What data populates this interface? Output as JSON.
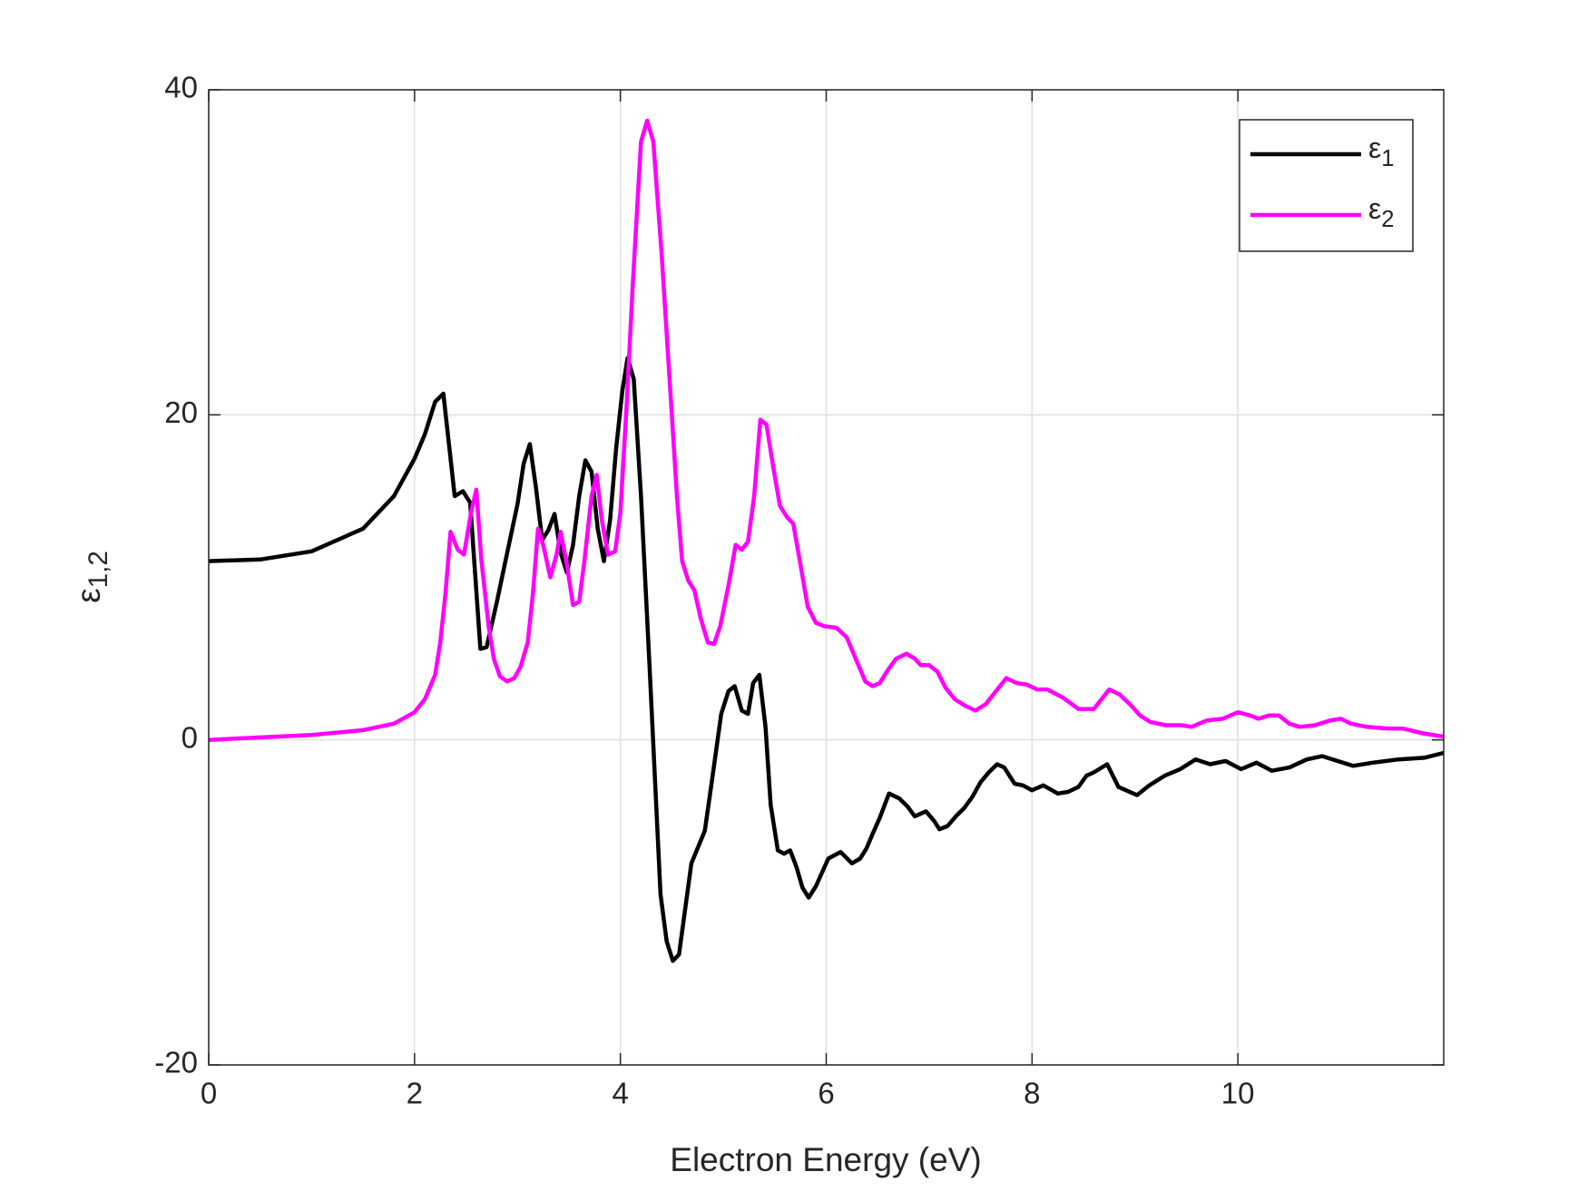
{
  "chart_data": {
    "type": "line",
    "xlabel": "Electron Energy (eV)",
    "ylabel": "ε1,2",
    "xlim": [
      0,
      12
    ],
    "ylim": [
      -20,
      40
    ],
    "xticks": [
      0,
      2,
      4,
      6,
      8,
      10
    ],
    "yticks": [
      -20,
      0,
      20,
      40
    ],
    "grid": true,
    "legend": "upper right",
    "series": [
      {
        "name": "ε1",
        "color": "#000000",
        "x": [
          0,
          0.5,
          1.0,
          1.5,
          1.8,
          2.0,
          2.1,
          2.2,
          2.28,
          2.39,
          2.47,
          2.54,
          2.64,
          2.7,
          2.8,
          2.9,
          3.0,
          3.06,
          3.12,
          3.18,
          3.24,
          3.3,
          3.36,
          3.42,
          3.48,
          3.54,
          3.6,
          3.66,
          3.72,
          3.78,
          3.84,
          3.9,
          3.96,
          4.02,
          4.07,
          4.13,
          4.2,
          4.28,
          4.39,
          4.45,
          4.51,
          4.57,
          4.69,
          4.82,
          4.89,
          4.98,
          5.05,
          5.11,
          5.18,
          5.24,
          5.29,
          5.35,
          5.41,
          5.46,
          5.53,
          5.59,
          5.65,
          5.71,
          5.77,
          5.83,
          5.9,
          6.02,
          6.14,
          6.25,
          6.33,
          6.39,
          6.45,
          6.52,
          6.61,
          6.71,
          6.79,
          6.86,
          6.97,
          7.05,
          7.1,
          7.18,
          7.26,
          7.34,
          7.42,
          7.5,
          7.58,
          7.66,
          7.73,
          7.83,
          7.91,
          8.0,
          8.11,
          8.25,
          8.35,
          8.45,
          8.53,
          8.6,
          8.73,
          8.84,
          9.02,
          9.14,
          9.29,
          9.44,
          9.59,
          9.73,
          9.88,
          10.03,
          10.18,
          10.33,
          10.5,
          10.67,
          10.82,
          10.97,
          11.12,
          11.31,
          11.56,
          11.81,
          12.0
        ],
        "values": [
          11.0,
          11.1,
          11.6,
          13.0,
          15.0,
          17.3,
          18.8,
          20.8,
          21.3,
          15.0,
          15.3,
          14.6,
          5.6,
          5.7,
          8.5,
          11.5,
          14.5,
          17.0,
          18.2,
          15.5,
          12.3,
          12.9,
          13.9,
          11.5,
          10.3,
          12.0,
          15.0,
          17.2,
          16.5,
          13.0,
          11.0,
          13.5,
          18.0,
          21.5,
          23.5,
          22.2,
          15.0,
          5.0,
          -9.5,
          -12.4,
          -13.6,
          -13.2,
          -7.6,
          -5.6,
          -2.5,
          1.6,
          3.0,
          3.3,
          1.8,
          1.6,
          3.5,
          4.0,
          0.8,
          -4.0,
          -6.8,
          -7.0,
          -6.8,
          -7.8,
          -9.1,
          -9.7,
          -9.0,
          -7.3,
          -6.9,
          -7.6,
          -7.3,
          -6.7,
          -5.8,
          -4.8,
          -3.3,
          -3.6,
          -4.1,
          -4.7,
          -4.4,
          -5.0,
          -5.5,
          -5.3,
          -4.7,
          -4.2,
          -3.5,
          -2.6,
          -2.0,
          -1.5,
          -1.7,
          -2.7,
          -2.8,
          -3.1,
          -2.8,
          -3.3,
          -3.2,
          -2.9,
          -2.2,
          -2.0,
          -1.5,
          -2.9,
          -3.4,
          -2.8,
          -2.2,
          -1.8,
          -1.2,
          -1.5,
          -1.3,
          -1.8,
          -1.4,
          -1.9,
          -1.7,
          -1.2,
          -1.0,
          -1.3,
          -1.6,
          -1.4,
          -1.2,
          -1.1,
          -0.8
        ]
      },
      {
        "name": "ε2",
        "color": "#ff00ff",
        "x": [
          0,
          1.0,
          1.5,
          1.8,
          2.0,
          2.1,
          2.2,
          2.25,
          2.3,
          2.35,
          2.42,
          2.48,
          2.55,
          2.6,
          2.65,
          2.72,
          2.77,
          2.83,
          2.9,
          2.97,
          3.03,
          3.1,
          3.15,
          3.2,
          3.25,
          3.32,
          3.38,
          3.42,
          3.48,
          3.54,
          3.6,
          3.65,
          3.72,
          3.77,
          3.82,
          3.88,
          3.95,
          4.0,
          4.06,
          4.12,
          4.2,
          4.26,
          4.32,
          4.4,
          4.48,
          4.55,
          4.6,
          4.66,
          4.72,
          4.78,
          4.85,
          4.91,
          4.97,
          5.05,
          5.12,
          5.18,
          5.24,
          5.3,
          5.36,
          5.42,
          5.48,
          5.55,
          5.62,
          5.68,
          5.75,
          5.82,
          5.9,
          5.98,
          6.1,
          6.2,
          6.3,
          6.38,
          6.45,
          6.52,
          6.6,
          6.68,
          6.78,
          6.86,
          6.92,
          7.0,
          7.08,
          7.16,
          7.25,
          7.35,
          7.45,
          7.55,
          7.65,
          7.75,
          7.85,
          7.95,
          8.05,
          8.15,
          8.3,
          8.45,
          8.6,
          8.75,
          8.85,
          8.95,
          9.05,
          9.15,
          9.3,
          9.45,
          9.55,
          9.7,
          9.85,
          10.0,
          10.12,
          10.2,
          10.3,
          10.4,
          10.5,
          10.6,
          10.75,
          10.9,
          11.0,
          11.1,
          11.25,
          11.45,
          11.6,
          11.8,
          12.0
        ],
        "values": [
          0.0,
          0.3,
          0.6,
          1.0,
          1.7,
          2.5,
          4.0,
          6.0,
          9.0,
          12.8,
          11.7,
          11.4,
          14.0,
          15.4,
          11.0,
          7.0,
          5.0,
          3.9,
          3.6,
          3.8,
          4.5,
          6.0,
          9.0,
          13.0,
          12.0,
          10.0,
          11.4,
          12.8,
          10.8,
          8.3,
          8.5,
          11.0,
          15.0,
          16.3,
          13.5,
          11.4,
          11.6,
          14.0,
          20.5,
          28,
          36.8,
          38.1,
          36.8,
          30,
          22,
          15.0,
          11.0,
          9.8,
          9.2,
          7.5,
          6.0,
          5.9,
          7.0,
          9.5,
          12.0,
          11.7,
          12.2,
          15.0,
          19.7,
          19.4,
          17.0,
          14.4,
          13.7,
          13.3,
          10.8,
          8.2,
          7.2,
          7.0,
          6.9,
          6.3,
          4.8,
          3.6,
          3.3,
          3.5,
          4.3,
          5.0,
          5.3,
          5.0,
          4.6,
          4.6,
          4.2,
          3.2,
          2.5,
          2.1,
          1.8,
          2.2,
          3.0,
          3.8,
          3.5,
          3.4,
          3.1,
          3.1,
          2.6,
          1.9,
          1.9,
          3.1,
          2.8,
          2.2,
          1.5,
          1.1,
          0.9,
          0.9,
          0.8,
          1.2,
          1.3,
          1.7,
          1.5,
          1.3,
          1.5,
          1.5,
          1.0,
          0.8,
          0.9,
          1.2,
          1.3,
          1.0,
          0.8,
          0.7,
          0.7,
          0.4,
          0.2
        ]
      }
    ]
  }
}
